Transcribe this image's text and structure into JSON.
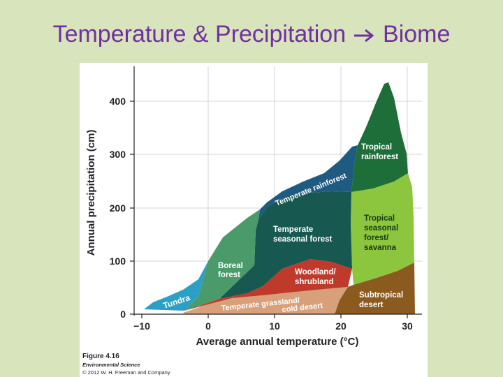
{
  "slide": {
    "title_left": "Temperature & Precipitation",
    "title_right": "Biome"
  },
  "colors": {
    "background": "#d8e4bc",
    "title": "#7030a0",
    "tundra": "#2b9fc4",
    "boreal_forest": "#4a9a6a",
    "temperate_rainforest": "#1f5a80",
    "temperate_seasonal_forest": "#175950",
    "woodland_shrubland": "#c03a2b",
    "temperate_grassland": "#d8a07a",
    "tropical_rainforest": "#1e6e3a",
    "tropical_seasonal_forest": "#8cc63f",
    "subtropical_desert": "#8a5a1e"
  },
  "figure": {
    "y_axis_label": "Annual precipitation (cm)",
    "x_axis_label": "Average annual temperature (°C)",
    "y_ticks": [
      "400",
      "300",
      "200",
      "100",
      "0"
    ],
    "x_ticks": [
      "−10",
      "0",
      "10",
      "20",
      "30"
    ],
    "biomes": {
      "tundra": "Tundra",
      "boreal_forest": [
        "Boreal",
        "forest"
      ],
      "temperate_rainforest": "Temperate rainforest",
      "temperate_seasonal_forest": [
        "Temperate",
        "seasonal forest"
      ],
      "woodland_shrubland": [
        "Woodland/",
        "shrubland"
      ],
      "temperate_grassland": [
        "Temperate grassland/",
        "cold desert"
      ],
      "tropical_rainforest": [
        "Tropical",
        "rainforest"
      ],
      "tropical_seasonal_forest": [
        "Tropical",
        "seasonal",
        "forest/",
        "savanna"
      ],
      "subtropical_desert": [
        "Subtropical",
        "desert"
      ]
    },
    "caption": {
      "figure_number": "Figure 4.16",
      "book": "Environmental Science",
      "copyright": "© 2012 W. H. Freeman and Company"
    }
  }
}
